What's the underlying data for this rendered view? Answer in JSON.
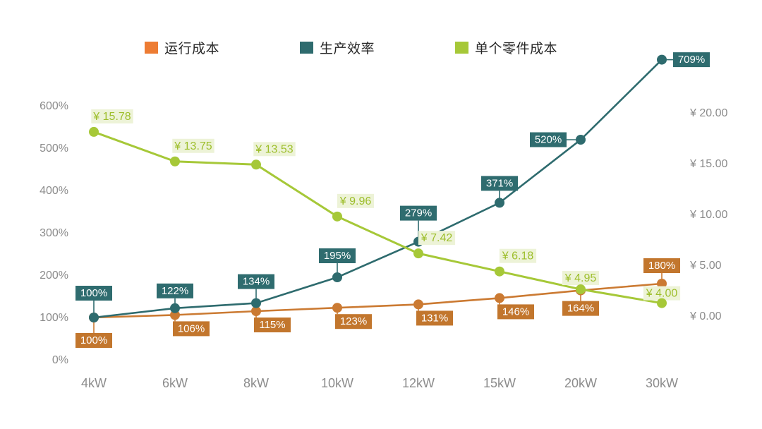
{
  "chart_data": {
    "type": "line",
    "title": "",
    "categories": [
      "4kW",
      "6kW",
      "8kW",
      "10kW",
      "12kW",
      "15kW",
      "20kW",
      "30kW"
    ],
    "left_axis": {
      "ticks": [
        "0%",
        "100%",
        "200%",
        "300%",
        "400%",
        "500%",
        "600%"
      ],
      "min": 0,
      "max": 600,
      "format": "percent"
    },
    "right_axis": {
      "ticks": [
        "¥ 0.00",
        "¥ 5.00",
        "¥ 10.00",
        "¥ 15.00",
        "¥ 20.00"
      ],
      "min": 0,
      "max": 20,
      "format": "CNY"
    },
    "grid": false,
    "legend_position": "top",
    "background": "#FFFFFF",
    "series": [
      {
        "name": "运行成本",
        "axis": "left",
        "color": "#CB7A32",
        "chip_color": "#ED7C33",
        "label_bg": "#C2762D",
        "label_text": "#FFFFFF",
        "label_style": "solid",
        "line_width": 2.6,
        "values": [
          100,
          106,
          115,
          123,
          131,
          146,
          164,
          180
        ],
        "labels": [
          "100%",
          "106%",
          "115%",
          "123%",
          "131%",
          "146%",
          "164%",
          "180%"
        ],
        "placements": [
          "b22",
          "br",
          "br",
          "br",
          "br",
          "br",
          "b15",
          "a15"
        ]
      },
      {
        "name": "生产效率",
        "axis": "left",
        "color": "#2E6B6E",
        "chip_color": "#2E6B6E",
        "label_bg": "#2F6C6F",
        "label_text": "#FFFFFF",
        "label_style": "solid",
        "line_width": 2.6,
        "values": [
          100,
          122,
          134,
          195,
          279,
          371,
          520,
          709
        ],
        "labels": [
          "100%",
          "122%",
          "134%",
          "195%",
          "279%",
          "371%",
          "520%",
          "709%"
        ],
        "placements": [
          "a24",
          "a14",
          "a20",
          "a20",
          "a30",
          "a17",
          "l",
          "r"
        ]
      },
      {
        "name": "单个零件成本",
        "axis": "right",
        "color": "#A6C838",
        "chip_color": "#A6C838",
        "label_bg": "#EDF3D7",
        "label_text": "#9DBE2B",
        "label_style": "tinted",
        "line_width": 3,
        "values": [
          15.78,
          13.75,
          13.53,
          9.96,
          7.42,
          6.18,
          4.95,
          4.0
        ],
        "labels": [
          "¥ 15.78",
          "¥ 13.75",
          "¥ 13.53",
          "¥ 9.96",
          "¥ 7.42",
          "¥ 6.18",
          "¥ 4.95",
          "¥ 4.00"
        ],
        "placements": [
          "ar",
          "ar",
          "ar",
          "ar",
          "ar",
          "ar",
          "a6",
          "a4"
        ]
      }
    ]
  }
}
